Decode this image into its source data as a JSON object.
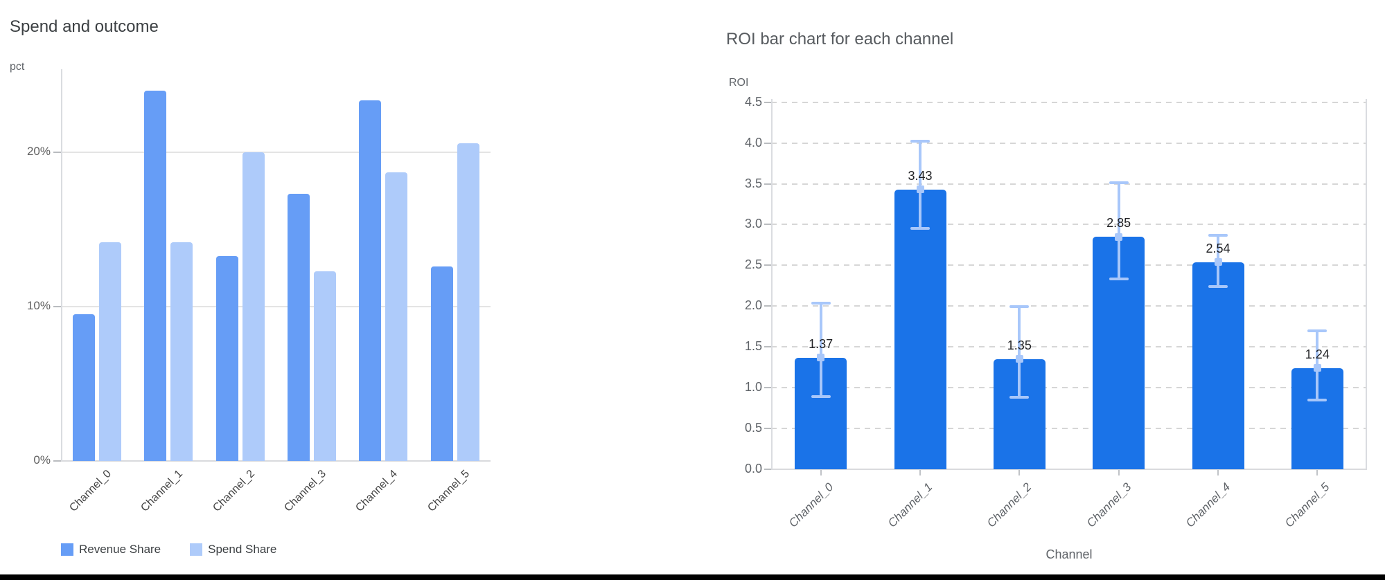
{
  "page": {
    "background": "#ffffff",
    "bottom_bar_color": "#000000"
  },
  "chart_data": [
    {
      "type": "bar",
      "title": "Spend and outcome",
      "value_axis_label": "pct",
      "xlabel": "",
      "ylabel": "pct",
      "categories": [
        "Channel_0",
        "Channel_1",
        "Channel_2",
        "Channel_3",
        "Channel_4",
        "Channel_5"
      ],
      "series": [
        {
          "name": "Revenue Share",
          "color": "#669df6",
          "values": [
            9.5,
            24.0,
            13.3,
            17.3,
            23.4,
            12.6
          ]
        },
        {
          "name": "Spend Share",
          "color": "#aecbfa",
          "values": [
            14.2,
            14.2,
            20.0,
            12.3,
            18.7,
            20.6
          ]
        }
      ],
      "yticks": [
        {
          "value": 0,
          "label": "0%"
        },
        {
          "value": 10,
          "label": "10%"
        },
        {
          "value": 20,
          "label": "20%"
        }
      ],
      "ylim": [
        0,
        25.4
      ],
      "grid": "solid horizontal",
      "legend_position": "bottom"
    },
    {
      "type": "bar",
      "title": "ROI bar chart for each channel",
      "value_axis_label": "ROI",
      "xlabel": "Channel",
      "ylabel": "ROI",
      "categories": [
        "Channel_0",
        "Channel_1",
        "Channel_2",
        "Channel_3",
        "Channel_4",
        "Channel_5"
      ],
      "values": [
        1.37,
        3.43,
        1.35,
        2.85,
        2.54,
        1.24
      ],
      "data_labels": [
        "1.37",
        "3.43",
        "1.35",
        "2.85",
        "2.54",
        "1.24"
      ],
      "error_low": [
        0.89,
        2.95,
        0.88,
        2.33,
        2.24,
        0.85
      ],
      "error_high": [
        2.04,
        4.02,
        1.99,
        3.51,
        2.87,
        1.7
      ],
      "bar_color": "#1a73e8",
      "error_color": "#a8c7fa",
      "yticks": [
        {
          "value": 0.0,
          "label": "0.0"
        },
        {
          "value": 0.5,
          "label": "0.5"
        },
        {
          "value": 1.0,
          "label": "1.0"
        },
        {
          "value": 1.5,
          "label": "1.5"
        },
        {
          "value": 2.0,
          "label": "2.0"
        },
        {
          "value": 2.5,
          "label": "2.5"
        },
        {
          "value": 3.0,
          "label": "3.0"
        },
        {
          "value": 3.5,
          "label": "3.5"
        },
        {
          "value": 4.0,
          "label": "4.0"
        },
        {
          "value": 4.5,
          "label": "4.5"
        }
      ],
      "ylim": [
        0,
        4.54
      ],
      "grid": "dashed horizontal",
      "legend_position": "none"
    }
  ]
}
